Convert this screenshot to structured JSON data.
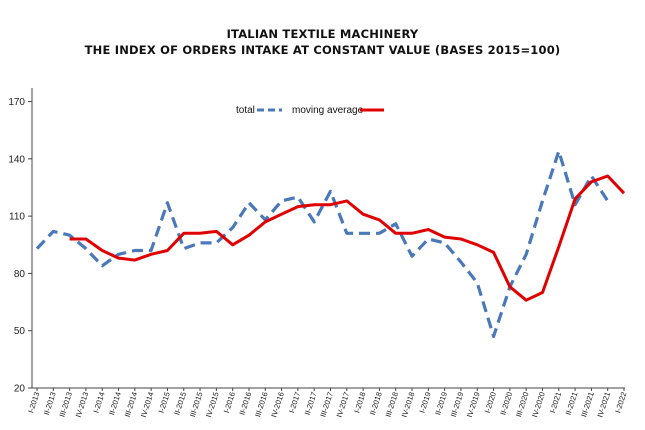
{
  "chart_data": {
    "type": "line",
    "title": "ITALIAN TEXTILE MACHINERY",
    "subtitle": "THE INDEX OF ORDERS INTAKE AT CONSTANT VALUE (BASES 2015=100)",
    "xlabel": "",
    "ylabel": "",
    "ylim": [
      20,
      175
    ],
    "yticks": [
      20,
      50,
      80,
      110,
      140,
      170
    ],
    "grid": false,
    "legend_position": "top-center",
    "categories": [
      "I-2013",
      "II-2013",
      "III-2013",
      "IV-2013",
      "I-2014",
      "II-2014",
      "III-2014",
      "IV-2014",
      "I-2015",
      "II-2015",
      "III-2015",
      "IV-2015",
      "I-2016",
      "II-2016",
      "III-2016",
      "IV-2016",
      "I-2017",
      "II-2017",
      "III-2017",
      "IV-2017",
      "I-2018",
      "II-2018",
      "III-2018",
      "IV-2018",
      "I-2019",
      "II-2019",
      "III-2019",
      "IV-2019",
      "I-2020",
      "II-2020",
      "III-2020",
      "IV-2020",
      "I-2021",
      "II-2021",
      "III-2021",
      "IV-2021",
      "I-2022"
    ],
    "series": [
      {
        "name": "total",
        "style": "dashed",
        "color": "#4a78b8",
        "values": [
          93,
          102,
          100,
          93,
          84,
          90,
          92,
          92,
          117,
          93,
          96,
          96,
          104,
          117,
          108,
          118,
          120,
          107,
          123,
          101,
          101,
          101,
          106,
          89,
          98,
          96,
          86,
          75,
          47,
          73,
          90,
          118,
          144,
          116,
          131,
          118,
          null
        ]
      },
      {
        "name": "moving average",
        "style": "solid",
        "color": "#e00000",
        "values": [
          null,
          null,
          98,
          98,
          92,
          88,
          87,
          90,
          92,
          101,
          101,
          102,
          95,
          100,
          107,
          111,
          115,
          116,
          116,
          118,
          111,
          108,
          101,
          101,
          103,
          99,
          98,
          95,
          91,
          73,
          66,
          70,
          94,
          119,
          128,
          131,
          122
        ]
      }
    ]
  },
  "legend": {
    "total_label": "total",
    "moving_average_label": "moving average"
  }
}
